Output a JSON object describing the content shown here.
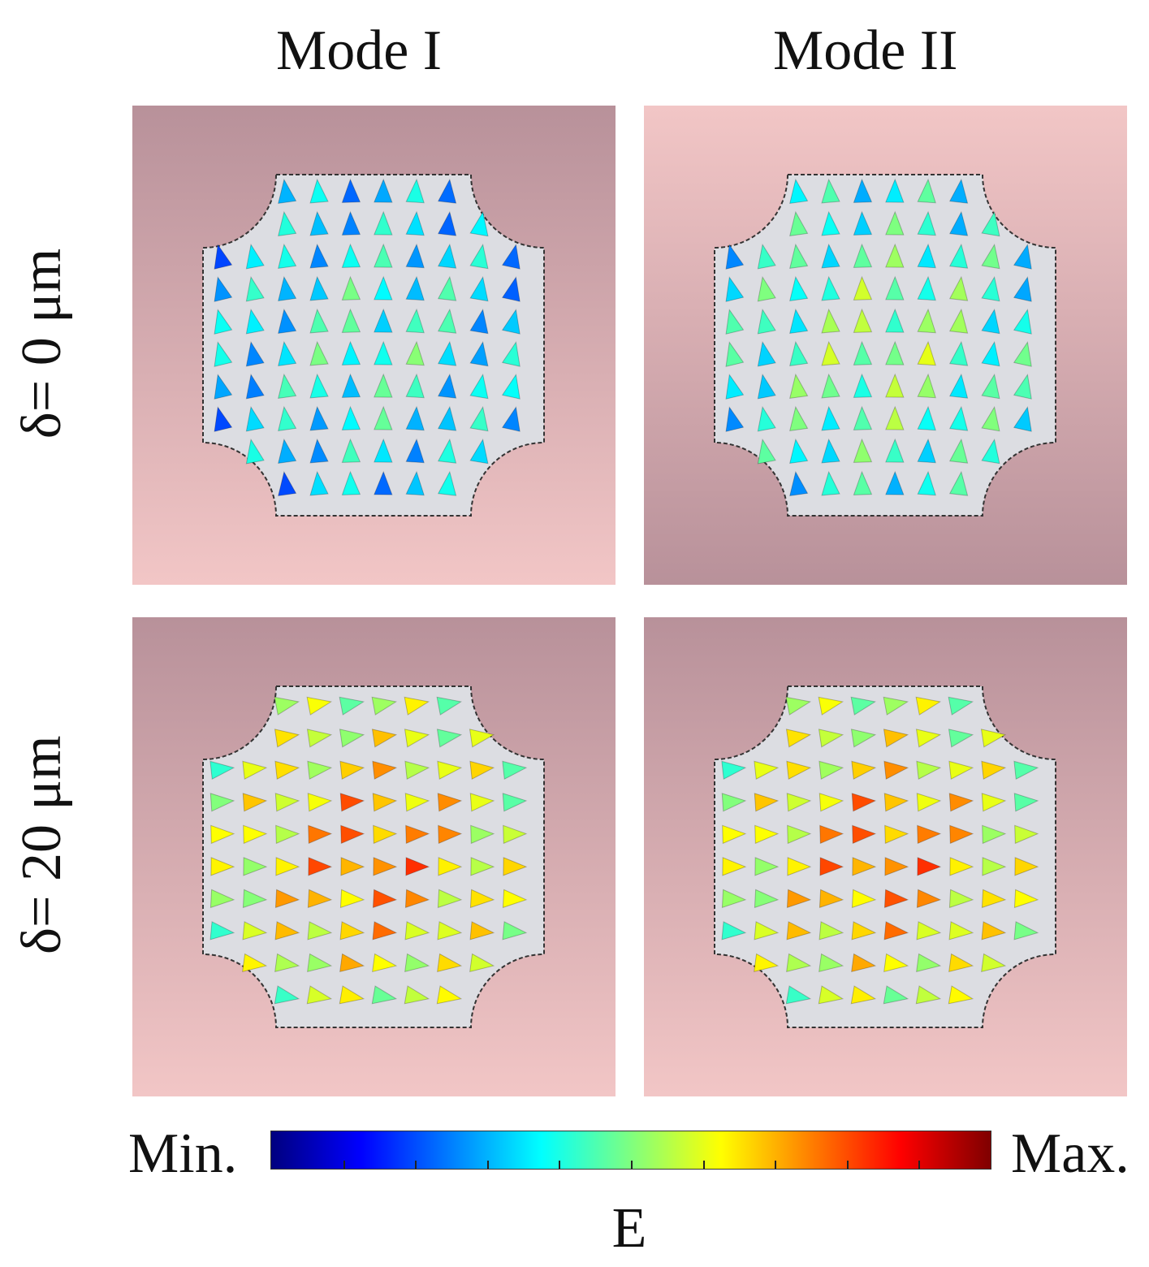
{
  "figure": {
    "columns": [
      {
        "title": "Mode I"
      },
      {
        "title": "Mode II"
      }
    ],
    "rows": [
      {
        "label": "δ= 0 μm"
      },
      {
        "label": "δ= 20 μm"
      }
    ],
    "panels": [
      {
        "id": "r1c1",
        "mode": "Mode I",
        "delta": "δ= 0 μm",
        "background": [
          "#b8919a",
          "#f2c6c6"
        ],
        "field_direction": "up",
        "field_level": 0.45
      },
      {
        "id": "r1c2",
        "mode": "Mode II",
        "delta": "δ= 0 μm",
        "background": [
          "#f2c6c6",
          "#b8919a"
        ],
        "field_direction": "up",
        "field_level": 0.55
      },
      {
        "id": "r2c1",
        "mode": "Mode I",
        "delta": "δ= 20 μm",
        "background": [
          "#b8919a",
          "#f2c6c6"
        ],
        "field_direction": "right",
        "field_level": 0.8
      },
      {
        "id": "r2c2",
        "mode": "Mode II",
        "delta": "δ= 20 μm",
        "background": [
          "#b8919a",
          "#f2c6c6"
        ],
        "field_direction": "right",
        "field_level": 0.8
      }
    ],
    "colorbar": {
      "min_label": "Min.",
      "max_label": "Max.",
      "title": "E",
      "colors": [
        "#00007f",
        "#0000ff",
        "#007fff",
        "#00ffff",
        "#7fff7f",
        "#ffff00",
        "#ff7f00",
        "#ff0000",
        "#7f0000"
      ],
      "tick_count": 10
    },
    "arrow_icon": "cone-arrow-icon"
  }
}
